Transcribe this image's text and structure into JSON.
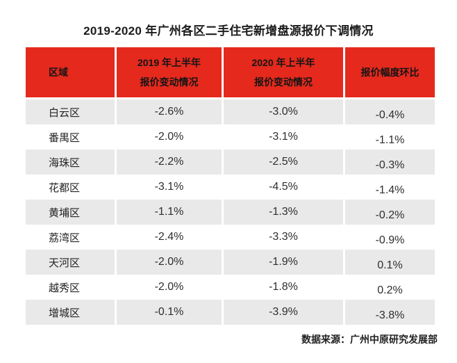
{
  "title": "2019-2020 年广州各区二手住宅新增盘源报价下调情况",
  "colors": {
    "header_bg": "#e5291d",
    "alt_row_bg": "#e9e9e9",
    "text": "#1c1c1c"
  },
  "chart_data": {
    "type": "table",
    "title": "2019-2020 年广州各区二手住宅新增盘源报价下调情况",
    "column_headers": [
      {
        "line1": "区域",
        "line2": ""
      },
      {
        "line1": "2019 年上半年",
        "line2": "报价变动情况"
      },
      {
        "line1": "2020 年上半年",
        "line2": "报价变动情况"
      },
      {
        "line1": "报价幅度环比",
        "line2": ""
      }
    ],
    "rows": [
      {
        "district": "白云区",
        "y2019": "-2.6%",
        "y2020": "-3.0%",
        "mom": "-0.4%"
      },
      {
        "district": "番禺区",
        "y2019": "-2.0%",
        "y2020": "-3.1%",
        "mom": "-1.1%"
      },
      {
        "district": "海珠区",
        "y2019": "-2.2%",
        "y2020": "-2.5%",
        "mom": "-0.3%"
      },
      {
        "district": "花都区",
        "y2019": "-3.1%",
        "y2020": "-4.5%",
        "mom": "-1.4%"
      },
      {
        "district": "黄埔区",
        "y2019": "-1.1%",
        "y2020": "-1.3%",
        "mom": "-0.2%"
      },
      {
        "district": "荔湾区",
        "y2019": "-2.4%",
        "y2020": "-3.3%",
        "mom": "-0.9%"
      },
      {
        "district": "天河区",
        "y2019": "-2.0%",
        "y2020": "-1.9%",
        "mom": "0.1%"
      },
      {
        "district": "越秀区",
        "y2019": "-2.0%",
        "y2020": "-1.8%",
        "mom": "0.2%"
      },
      {
        "district": "增城区",
        "y2019": "-0.1%",
        "y2020": "-3.9%",
        "mom": "-3.8%"
      }
    ],
    "numeric": {
      "districts": [
        "白云区",
        "番禺区",
        "海珠区",
        "花都区",
        "黄埔区",
        "荔湾区",
        "天河区",
        "越秀区",
        "增城区"
      ],
      "series": [
        {
          "name": "2019 年上半年报价变动情况",
          "values": [
            -2.6,
            -2.0,
            -2.2,
            -3.1,
            -1.1,
            -2.4,
            -2.0,
            -2.0,
            -0.1
          ]
        },
        {
          "name": "2020 年上半年报价变动情况",
          "values": [
            -3.0,
            -3.1,
            -2.5,
            -4.5,
            -1.3,
            -3.3,
            -1.9,
            -1.8,
            -3.9
          ]
        },
        {
          "name": "报价幅度环比",
          "values": [
            -0.4,
            -1.1,
            -0.3,
            -1.4,
            -0.2,
            -0.9,
            0.1,
            0.2,
            -3.8
          ]
        }
      ],
      "unit": "%"
    },
    "source": "数据来源：广州中原研究发展部"
  }
}
